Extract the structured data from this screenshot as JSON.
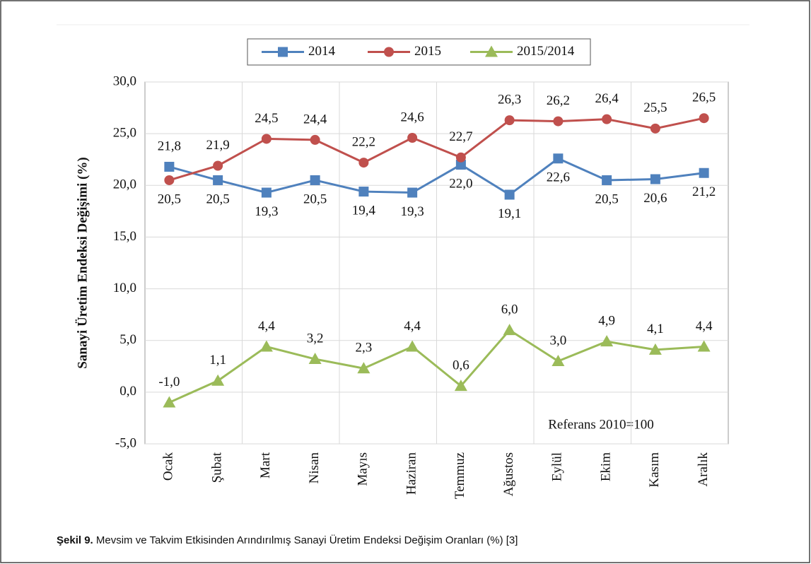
{
  "chart_data": {
    "type": "line",
    "y_label": "Sanayi Üretim Endeksi Değişimi (%)",
    "annotation": "Referans 2010=100",
    "caption_label": "Şekil 9.",
    "caption_text": "Mevsim ve Takvim Etkisinden Arındırılmış Sanayi Üretim Endeksi Değişim Oranları (%) [3]",
    "categories": [
      "Ocak",
      "Şubat",
      "Mart",
      "Nisan",
      "Mayıs",
      "Haziran",
      "Temmuz",
      "Ağustos",
      "Eylül",
      "Ekim",
      "Kasım",
      "Aralık"
    ],
    "series": [
      {
        "name": "2014",
        "color": "#4f81bd",
        "marker": "square",
        "values": [
          21.8,
          20.5,
          19.3,
          20.5,
          19.4,
          19.3,
          22.0,
          19.1,
          22.6,
          20.5,
          20.6,
          21.2
        ],
        "value_labels": [
          "21,8",
          "20,5",
          "19,3",
          "20,5",
          "19,4",
          "19,3",
          "22,0",
          "19,1",
          "22,6",
          "20,5",
          "20,6",
          "21,2"
        ]
      },
      {
        "name": "2015",
        "color": "#c0504d",
        "marker": "circle",
        "values": [
          20.5,
          21.9,
          24.5,
          24.4,
          22.2,
          24.6,
          22.7,
          26.3,
          26.2,
          26.4,
          25.5,
          26.5
        ],
        "value_labels": [
          "20,5",
          "21,9",
          "24,5",
          "24,4",
          "22,2",
          "24,6",
          "22,7",
          "26,3",
          "26,2",
          "26,4",
          "25,5",
          "26,5"
        ]
      },
      {
        "name": "2015/2014",
        "color": "#9bbb59",
        "marker": "triangle",
        "values": [
          -1.0,
          1.1,
          4.4,
          3.2,
          2.3,
          4.4,
          0.6,
          6.0,
          3.0,
          4.9,
          4.1,
          4.4
        ],
        "value_labels": [
          "-1,0",
          "1,1",
          "4,4",
          "3,2",
          "2,3",
          "4,4",
          "0,6",
          "6,0",
          "3,0",
          "4,9",
          "4,1",
          "4,4"
        ]
      }
    ],
    "ylim": [
      -5,
      30
    ],
    "yticks": [
      {
        "value": -5,
        "label": "-5,0"
      },
      {
        "value": 0,
        "label": "0,0"
      },
      {
        "value": 5,
        "label": "5,0"
      },
      {
        "value": 10,
        "label": "10,0"
      },
      {
        "value": 15,
        "label": "15,0"
      },
      {
        "value": 20,
        "label": "20,0"
      },
      {
        "value": 25,
        "label": "25,0"
      },
      {
        "value": 30,
        "label": "30,0"
      }
    ],
    "grid": true,
    "legend": "top"
  }
}
